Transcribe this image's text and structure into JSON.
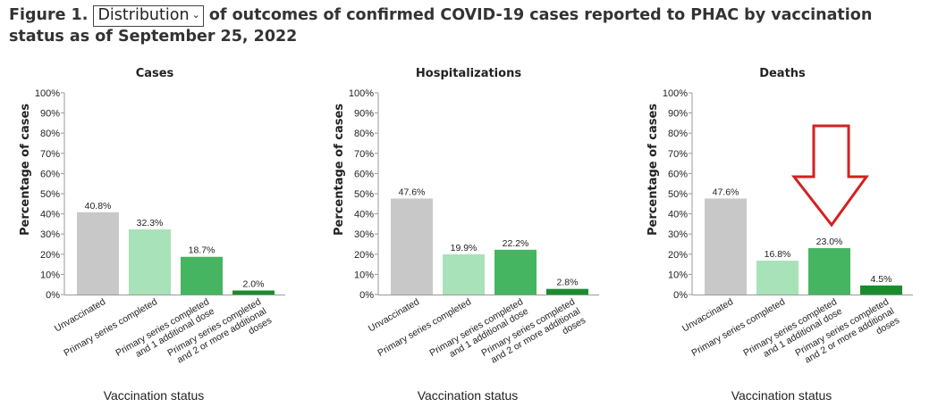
{
  "header": {
    "figure_label": "Figure 1.",
    "dropdown_value": "Distribution",
    "title_rest": "of outcomes of confirmed COVID-19 cases reported to PHAC by vaccination status as of September 25, 2022"
  },
  "colors": {
    "unvaccinated": "#c8c8c8",
    "primary_series": "#a8e2b8",
    "one_additional": "#45b562",
    "two_or_more": "#1b8c2e",
    "arrow": "#d42020"
  },
  "annotation": {
    "arrow_target": "Deaths",
    "arrow_category": "Primary series completed and 1 additional dose",
    "arrow_shape": "down-arrow-icon"
  },
  "chart_data": [
    {
      "type": "bar",
      "title": "Cases",
      "ylabel": "Percentage of cases",
      "xlabel": "Vaccination status",
      "ylim": [
        0,
        100
      ],
      "yticks": [
        "0%",
        "10%",
        "20%",
        "30%",
        "40%",
        "50%",
        "60%",
        "70%",
        "80%",
        "90%",
        "100%"
      ],
      "categories": [
        [
          "Unvaccinated"
        ],
        [
          "Primary series completed"
        ],
        [
          "Primary series completed",
          "and 1 additional dose"
        ],
        [
          "Primary series completed",
          "and 2 or more additional",
          "doses"
        ]
      ],
      "values": [
        40.8,
        32.3,
        18.7,
        2.0
      ],
      "labels": [
        "40.8%",
        "32.3%",
        "18.7%",
        "2.0%"
      ]
    },
    {
      "type": "bar",
      "title": "Hospitalizations",
      "ylabel": "Percentage of cases",
      "xlabel": "Vaccination status",
      "ylim": [
        0,
        100
      ],
      "yticks": [
        "0%",
        "10%",
        "20%",
        "30%",
        "40%",
        "50%",
        "60%",
        "70%",
        "80%",
        "90%",
        "100%"
      ],
      "categories": [
        [
          "Unvaccinated"
        ],
        [
          "Primary series completed"
        ],
        [
          "Primary series completed",
          "and 1 additional dose"
        ],
        [
          "Primary series completed",
          "and 2 or more additional",
          "doses"
        ]
      ],
      "values": [
        47.6,
        19.9,
        22.2,
        2.8
      ],
      "labels": [
        "47.6%",
        "19.9%",
        "22.2%",
        "2.8%"
      ]
    },
    {
      "type": "bar",
      "title": "Deaths",
      "ylabel": "Percentage of cases",
      "xlabel": "Vaccination status",
      "ylim": [
        0,
        100
      ],
      "yticks": [
        "0%",
        "10%",
        "20%",
        "30%",
        "40%",
        "50%",
        "60%",
        "70%",
        "80%",
        "90%",
        "100%"
      ],
      "categories": [
        [
          "Unvaccinated"
        ],
        [
          "Primary series completed"
        ],
        [
          "Primary series completed",
          "and 1 additional dose"
        ],
        [
          "Primary series completed",
          "and 2 or more additional",
          "doses"
        ]
      ],
      "values": [
        47.6,
        16.8,
        23.0,
        4.5
      ],
      "labels": [
        "47.6%",
        "16.8%",
        "23.0%",
        "4.5%"
      ]
    }
  ]
}
